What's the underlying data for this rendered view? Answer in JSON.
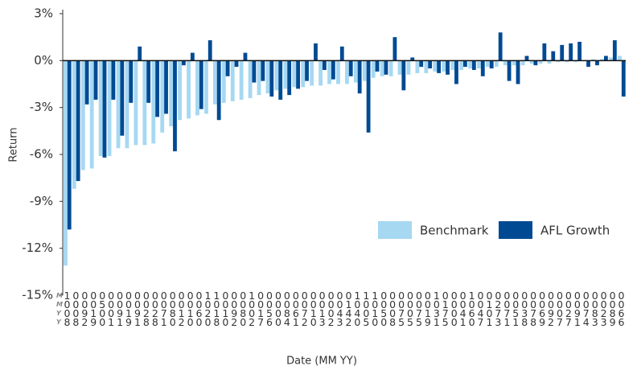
{
  "chart_data": {
    "type": "bar",
    "y_label": "Return",
    "x_label": "Date (MM YY)",
    "x_label_header": "MMYY",
    "categories": [
      "1008",
      "0008",
      "0092",
      "0019",
      "0500",
      "0001",
      "0091",
      "0019",
      "0091",
      "0028",
      "0028",
      "0071",
      "0080",
      "0012",
      "0010",
      "0060",
      "1020",
      "1018",
      "0010",
      "0092",
      "0080",
      "1002",
      "0017",
      "0056",
      "0000",
      "0084",
      "0061",
      "0072",
      "0010",
      "0013",
      "0002",
      "0043",
      "0142",
      "1040",
      "1005",
      "1010",
      "0050",
      "0008",
      "0075",
      "0005",
      "0075",
      "0019",
      "1031",
      "0175",
      "0000",
      "0041",
      "1060",
      "0047",
      "0101",
      "0273",
      "0071",
      "0051",
      "0038",
      "0078",
      "0069",
      "0092",
      "0007",
      "0027",
      "0091",
      "0074",
      "0083",
      "0023",
      "0089",
      "0066"
    ],
    "series": [
      {
        "name": "Benchmark",
        "color": "#a6d8f2",
        "values": [
          -13.1,
          -8.2,
          -7.0,
          -6.9,
          -6.1,
          -6.1,
          -5.6,
          -5.6,
          -5.4,
          -5.4,
          -5.3,
          -4.6,
          -4.2,
          -3.8,
          -3.7,
          -3.5,
          -3.4,
          -2.8,
          -2.7,
          -2.6,
          -2.5,
          -2.4,
          -2.2,
          -2.1,
          -1.9,
          -1.8,
          -1.7,
          -1.7,
          -1.6,
          -1.6,
          -1.5,
          -1.5,
          -1.5,
          -1.4,
          -1.3,
          -1.1,
          -1.0,
          -1.0,
          -0.9,
          -0.9,
          -0.8,
          -0.8,
          -0.7,
          -0.7,
          -0.6,
          -0.6,
          -0.5,
          -0.5,
          -0.4,
          -0.4,
          -0.3,
          -0.3,
          -0.3,
          -0.2,
          -0.2,
          -0.2,
          -0.1,
          -0.1,
          -0.1,
          0.0,
          0.1,
          0.1,
          0.2,
          0.3
        ]
      },
      {
        "name": "AFL Growth",
        "color": "#004a93",
        "values": [
          -10.8,
          -7.7,
          -2.8,
          -2.5,
          -6.2,
          -2.5,
          -4.8,
          -2.7,
          0.9,
          -2.7,
          -3.6,
          -3.4,
          -5.8,
          -0.3,
          0.5,
          -3.1,
          1.3,
          -3.8,
          -1.0,
          -0.4,
          0.5,
          -1.4,
          -1.3,
          -2.3,
          -2.5,
          -2.2,
          -1.8,
          -1.3,
          1.1,
          -0.6,
          -1.2,
          0.9,
          -1.0,
          -2.1,
          -4.6,
          -0.7,
          -0.9,
          1.5,
          -1.9,
          0.2,
          -0.4,
          -0.5,
          -0.8,
          -0.9,
          -1.5,
          -0.4,
          -0.6,
          -1.0,
          -0.5,
          1.8,
          -1.3,
          -1.5,
          0.3,
          -0.3,
          1.1,
          0.6,
          1.0,
          1.1,
          1.2,
          -0.4,
          -0.3,
          0.3,
          1.3,
          -2.3
        ]
      }
    ],
    "ylim": [
      -15,
      3
    ],
    "yticks": [
      {
        "value": -15,
        "label": "-15%"
      },
      {
        "value": -12,
        "label": "-12%"
      },
      {
        "value": -9,
        "label": "-9%"
      },
      {
        "value": -6,
        "label": "-6%"
      },
      {
        "value": -3,
        "label": "-3%"
      },
      {
        "value": 0,
        "label": "0%"
      },
      {
        "value": 3,
        "label": "3%"
      }
    ],
    "grid": false
  }
}
